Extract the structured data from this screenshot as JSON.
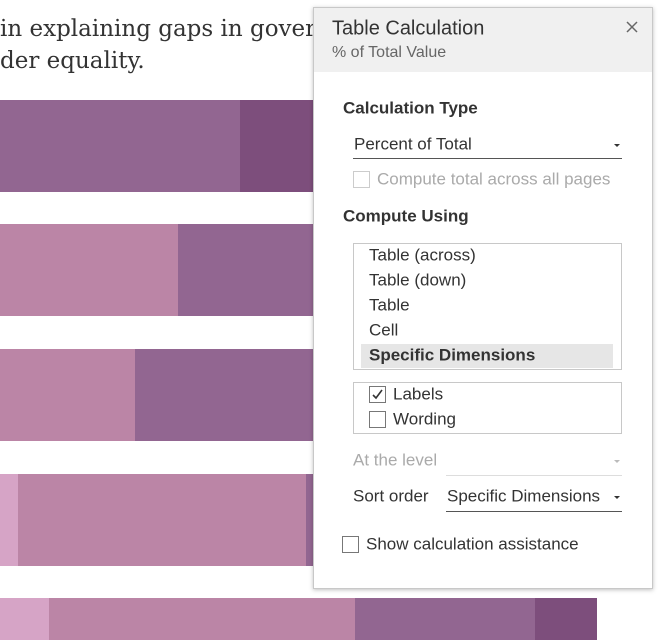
{
  "background": {
    "text_lines": [
      "in explaining gaps in gover",
      "der equality."
    ]
  },
  "dialog": {
    "title": "Table Calculation",
    "subtitle": "% of Total Value",
    "calculation_type": {
      "label": "Calculation Type",
      "value": "Percent of Total",
      "compute_total": {
        "label": "Compute total across all pages",
        "checked": false,
        "enabled": false
      }
    },
    "compute_using": {
      "label": "Compute Using",
      "options": [
        {
          "label": "Table (across)",
          "selected": false
        },
        {
          "label": "Table (down)",
          "selected": false
        },
        {
          "label": "Table",
          "selected": false
        },
        {
          "label": "Cell",
          "selected": false
        },
        {
          "label": "Specific Dimensions",
          "selected": true
        }
      ],
      "dimensions": [
        {
          "label": "Labels",
          "checked": true
        },
        {
          "label": "Wording",
          "checked": false
        }
      ]
    },
    "at_the_level": {
      "label": "At the level",
      "enabled": false
    },
    "sort_order": {
      "label": "Sort order",
      "value": "Specific Dimensions"
    },
    "show_assistance": {
      "label": "Show calculation assistance",
      "checked": false
    }
  }
}
